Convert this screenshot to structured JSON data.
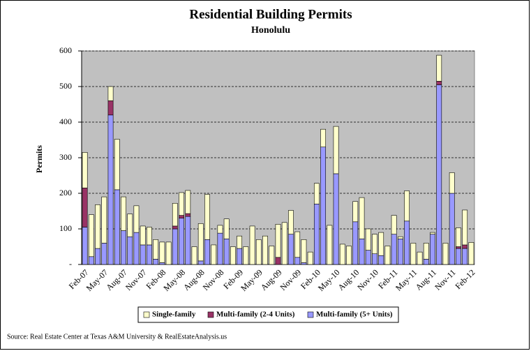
{
  "chart_data": {
    "type": "stacked_bar",
    "title": "Residential Building Permits",
    "subtitle": "Honolulu",
    "y_label": "Permits",
    "source": "Source: Real Estate Center at Texas A&M University & RealEstateAnalysis.us",
    "categories": [
      "Feb-07",
      null,
      null,
      "May-07",
      null,
      null,
      "Aug-07",
      null,
      null,
      "Nov-07",
      null,
      null,
      "Feb-08",
      null,
      null,
      "May-08",
      null,
      null,
      "Aug-08",
      null,
      null,
      "Nov-08",
      null,
      null,
      "Feb-09",
      null,
      null,
      "May-09",
      null,
      null,
      "Aug-09",
      null,
      null,
      "Nov-09",
      null,
      null,
      "Feb-10",
      null,
      null,
      "May-10",
      null,
      null,
      "Aug-10",
      null,
      null,
      "Nov-10",
      null,
      null,
      "Feb-11",
      null,
      null,
      "May-11",
      null,
      null,
      "Aug-11",
      null,
      null,
      "Nov-11",
      null,
      null,
      "Feb-12"
    ],
    "series": [
      {
        "name": "Single-family",
        "color": "#ffffcc",
        "values": [
          100,
          118,
          123,
          130,
          40,
          142,
          95,
          64,
          75,
          53,
          50,
          55,
          58,
          63,
          64,
          64,
          65,
          50,
          105,
          127,
          55,
          22,
          56,
          50,
          35,
          50,
          108,
          70,
          80,
          52,
          93,
          118,
          67,
          72,
          65,
          35,
          58,
          50,
          110,
          133,
          57,
          52,
          57,
          116,
          60,
          55,
          65,
          52,
          53,
          6,
          85,
          60,
          35,
          45,
          5,
          73,
          60,
          58,
          53,
          98,
          62
        ]
      },
      {
        "name": "Multi-family (2-4 Units)",
        "color": "#993366",
        "values": [
          110,
          0,
          0,
          0,
          40,
          0,
          0,
          0,
          0,
          0,
          0,
          0,
          0,
          0,
          8,
          8,
          8,
          0,
          0,
          0,
          0,
          0,
          0,
          0,
          0,
          0,
          0,
          0,
          0,
          0,
          20,
          0,
          0,
          0,
          0,
          0,
          0,
          0,
          0,
          0,
          0,
          0,
          0,
          0,
          0,
          0,
          0,
          0,
          0,
          0,
          0,
          0,
          0,
          0,
          0,
          10,
          0,
          0,
          5,
          10,
          0
        ]
      },
      {
        "name": "Multi-family (5+ Units)",
        "color": "#9999ff",
        "values": [
          105,
          22,
          45,
          60,
          420,
          210,
          95,
          78,
          90,
          55,
          55,
          15,
          5,
          0,
          100,
          130,
          135,
          0,
          10,
          70,
          0,
          88,
          72,
          0,
          45,
          0,
          0,
          0,
          0,
          0,
          0,
          0,
          85,
          20,
          5,
          0,
          170,
          330,
          0,
          255,
          0,
          0,
          120,
          72,
          40,
          30,
          25,
          0,
          85,
          72,
          122,
          0,
          0,
          15,
          85,
          505,
          0,
          200,
          45,
          45,
          0
        ]
      }
    ],
    "ylim": [
      0,
      600
    ],
    "yticks": [
      {
        "value": 0,
        "label": "-"
      },
      100,
      200,
      300,
      400,
      500,
      600
    ],
    "grid": true,
    "plot_background": "#c0c0c0",
    "legend": "bottom"
  }
}
